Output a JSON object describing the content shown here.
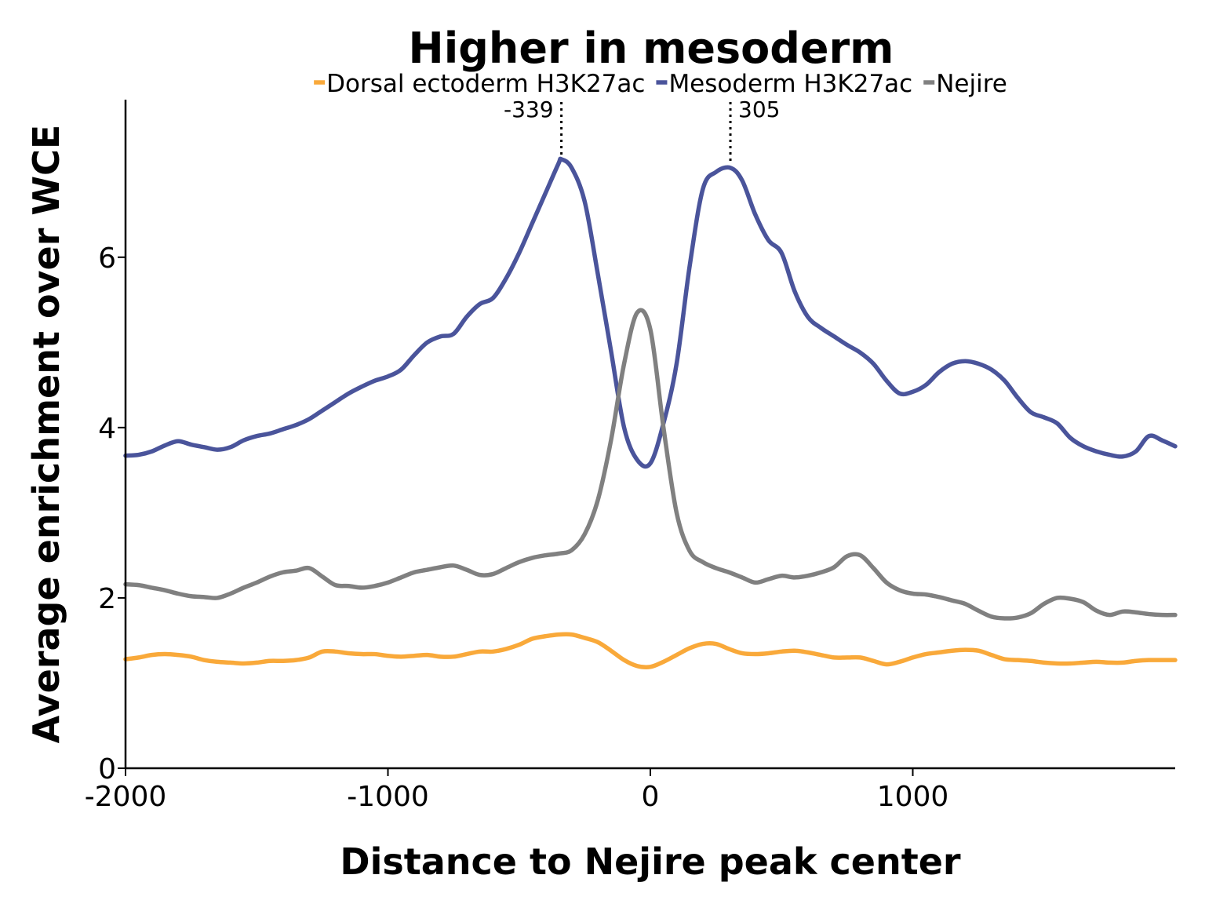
{
  "chart_data": {
    "type": "line",
    "title": "Higher in mesoderm",
    "xlabel": "Distance to Nejire peak center",
    "ylabel": "Average enrichment over WCE",
    "xlim": [
      -2000,
      2000
    ],
    "ylim": [
      0,
      7.85
    ],
    "xticks": [
      -2000,
      -1000,
      0,
      1000
    ],
    "yticks": [
      0,
      2,
      4,
      6
    ],
    "grid": false,
    "legend_position": "top",
    "series": [
      {
        "name": "Dorsal ectoderm H3K27ac",
        "color": "#F9A93A",
        "x": [
          -2000,
          -1950,
          -1900,
          -1850,
          -1800,
          -1750,
          -1700,
          -1650,
          -1600,
          -1550,
          -1500,
          -1450,
          -1400,
          -1350,
          -1300,
          -1250,
          -1200,
          -1150,
          -1100,
          -1050,
          -1000,
          -950,
          -900,
          -850,
          -800,
          -750,
          -700,
          -650,
          -600,
          -550,
          -500,
          -450,
          -400,
          -350,
          -300,
          -250,
          -200,
          -150,
          -100,
          -50,
          0,
          50,
          100,
          150,
          200,
          250,
          300,
          350,
          400,
          450,
          500,
          550,
          600,
          650,
          700,
          750,
          800,
          850,
          900,
          950,
          1000,
          1050,
          1100,
          1150,
          1200,
          1250,
          1300,
          1350,
          1400,
          1450,
          1500,
          1550,
          1600,
          1650,
          1700,
          1750,
          1800,
          1850,
          1900,
          1950,
          2000
        ],
        "y": [
          1.28,
          1.3,
          1.33,
          1.34,
          1.33,
          1.31,
          1.27,
          1.25,
          1.24,
          1.23,
          1.24,
          1.26,
          1.26,
          1.27,
          1.3,
          1.37,
          1.37,
          1.35,
          1.34,
          1.34,
          1.32,
          1.31,
          1.32,
          1.33,
          1.31,
          1.31,
          1.34,
          1.37,
          1.37,
          1.4,
          1.45,
          1.52,
          1.55,
          1.57,
          1.57,
          1.53,
          1.48,
          1.38,
          1.27,
          1.2,
          1.19,
          1.25,
          1.33,
          1.41,
          1.46,
          1.46,
          1.4,
          1.35,
          1.34,
          1.35,
          1.37,
          1.38,
          1.36,
          1.33,
          1.3,
          1.3,
          1.3,
          1.26,
          1.22,
          1.25,
          1.3,
          1.34,
          1.36,
          1.38,
          1.39,
          1.38,
          1.33,
          1.28,
          1.27,
          1.26,
          1.24,
          1.23,
          1.23,
          1.24,
          1.25,
          1.24,
          1.24,
          1.26,
          1.27,
          1.27,
          1.27
        ]
      },
      {
        "name": "Mesoderm H3K27ac",
        "color": "#4A549B",
        "x": [
          -2000,
          -1950,
          -1900,
          -1850,
          -1800,
          -1750,
          -1700,
          -1650,
          -1600,
          -1550,
          -1500,
          -1450,
          -1400,
          -1350,
          -1300,
          -1250,
          -1200,
          -1150,
          -1100,
          -1050,
          -1000,
          -950,
          -900,
          -850,
          -800,
          -750,
          -700,
          -650,
          -600,
          -550,
          -500,
          -450,
          -400,
          -350,
          -339,
          -300,
          -250,
          -200,
          -150,
          -100,
          -50,
          0,
          50,
          100,
          150,
          200,
          250,
          305,
          350,
          400,
          450,
          500,
          550,
          600,
          650,
          700,
          750,
          800,
          850,
          900,
          950,
          1000,
          1050,
          1100,
          1150,
          1200,
          1250,
          1300,
          1350,
          1400,
          1450,
          1500,
          1550,
          1600,
          1650,
          1700,
          1750,
          1800,
          1850,
          1900,
          1950,
          2000
        ],
        "y": [
          3.67,
          3.68,
          3.72,
          3.79,
          3.84,
          3.8,
          3.77,
          3.74,
          3.77,
          3.85,
          3.9,
          3.93,
          3.98,
          4.03,
          4.1,
          4.2,
          4.3,
          4.4,
          4.48,
          4.55,
          4.6,
          4.68,
          4.85,
          5.0,
          5.07,
          5.1,
          5.3,
          5.45,
          5.52,
          5.75,
          6.05,
          6.4,
          6.75,
          7.1,
          7.15,
          7.05,
          6.65,
          5.8,
          4.9,
          4.0,
          3.62,
          3.58,
          4.05,
          4.75,
          5.9,
          6.8,
          7.0,
          7.05,
          6.9,
          6.5,
          6.2,
          6.05,
          5.6,
          5.3,
          5.17,
          5.07,
          4.97,
          4.88,
          4.75,
          4.55,
          4.4,
          4.42,
          4.5,
          4.65,
          4.75,
          4.78,
          4.75,
          4.68,
          4.55,
          4.35,
          4.18,
          4.12,
          4.05,
          3.88,
          3.78,
          3.72,
          3.68,
          3.66,
          3.72,
          3.9,
          3.85,
          3.78
        ]
      },
      {
        "name": "Nejire",
        "color": "#808080",
        "x": [
          -2000,
          -1950,
          -1900,
          -1850,
          -1800,
          -1750,
          -1700,
          -1650,
          -1600,
          -1550,
          -1500,
          -1450,
          -1400,
          -1350,
          -1300,
          -1250,
          -1200,
          -1150,
          -1100,
          -1050,
          -1000,
          -950,
          -900,
          -850,
          -800,
          -750,
          -700,
          -650,
          -600,
          -550,
          -500,
          -450,
          -400,
          -350,
          -300,
          -250,
          -200,
          -150,
          -100,
          -50,
          0,
          50,
          100,
          150,
          200,
          250,
          300,
          350,
          400,
          450,
          500,
          550,
          600,
          650,
          700,
          750,
          800,
          850,
          900,
          950,
          1000,
          1050,
          1100,
          1150,
          1200,
          1250,
          1300,
          1350,
          1400,
          1450,
          1500,
          1550,
          1600,
          1650,
          1700,
          1750,
          1800,
          1850,
          1900,
          1950,
          2000
        ],
        "y": [
          2.16,
          2.15,
          2.12,
          2.09,
          2.05,
          2.02,
          2.01,
          2.0,
          2.05,
          2.12,
          2.18,
          2.25,
          2.3,
          2.32,
          2.35,
          2.25,
          2.15,
          2.14,
          2.12,
          2.14,
          2.18,
          2.24,
          2.3,
          2.33,
          2.36,
          2.38,
          2.33,
          2.27,
          2.28,
          2.35,
          2.42,
          2.47,
          2.5,
          2.52,
          2.56,
          2.75,
          3.15,
          3.85,
          4.75,
          5.35,
          5.15,
          4.0,
          3.0,
          2.55,
          2.42,
          2.35,
          2.3,
          2.24,
          2.18,
          2.22,
          2.26,
          2.24,
          2.26,
          2.3,
          2.36,
          2.49,
          2.5,
          2.35,
          2.18,
          2.09,
          2.05,
          2.04,
          2.01,
          1.97,
          1.93,
          1.85,
          1.78,
          1.76,
          1.77,
          1.82,
          1.93,
          2.0,
          1.99,
          1.95,
          1.85,
          1.8,
          1.84,
          1.83,
          1.81,
          1.8,
          1.8
        ]
      }
    ],
    "annotations": [
      {
        "x": -339,
        "label": "-339"
      },
      {
        "x": 305,
        "label": "305"
      }
    ]
  }
}
